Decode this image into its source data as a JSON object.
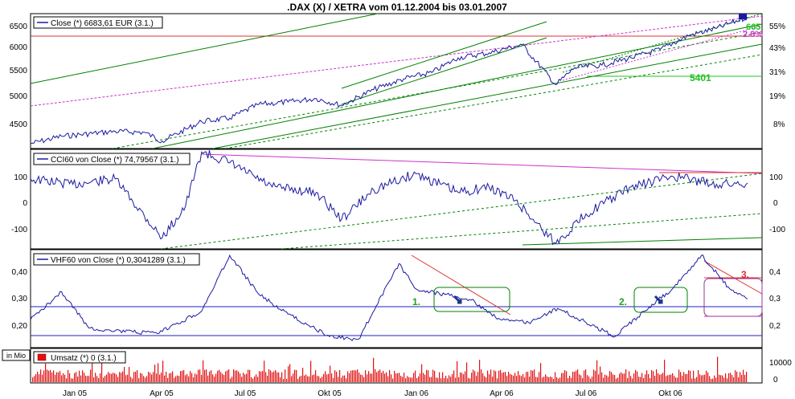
{
  "title": ".DAX (X) / XETRA vom 01.12.2004 bis 03.01.2007",
  "x_ticks": [
    "Jan 05",
    "Apr 05",
    "Jul 05",
    "Okt 05",
    "Jan 06",
    "Apr 06",
    "Jul 06",
    "Okt 06"
  ],
  "price_panel": {
    "legend": "Close (*) 6683,61 EUR (3.1.)",
    "left_ticks": [
      "6500",
      "6000",
      "5500",
      "5000",
      "4500"
    ],
    "right_ticks": [
      "55%",
      "43%",
      "31%",
      "19%",
      "8%"
    ],
    "annotation_5401": "5401",
    "annotation_665": "665",
    "annotation_28": "2.8%",
    "colors": {
      "close": "#1a1aa0",
      "channel": "#008000",
      "fib": "#cc33cc",
      "level": "#e03030",
      "support": "#22c022"
    }
  },
  "cci_panel": {
    "legend": "CCI60 von Close (*) 74,79567 (3.1.)",
    "left_ticks": [
      "100",
      "0",
      "-100"
    ],
    "right_ticks": [
      "100",
      "0",
      "-100"
    ]
  },
  "vhf_panel": {
    "legend": "VHF60 von Close (*) 0,3041289 (3.1.)",
    "left_ticks": [
      "0,40",
      "0,30",
      "0,20"
    ],
    "right_ticks": [
      "0,4",
      "0,3",
      "0,2"
    ],
    "labels": {
      "one": "1.",
      "two": "2.",
      "three": "3."
    }
  },
  "volume_panel": {
    "legend": "Umsatz (*) 0 (3.1.)",
    "unit_label": "in Mio",
    "right_ticks": [
      "10000",
      "0"
    ]
  },
  "chart_data": [
    {
      "type": "line",
      "name": "Close",
      "x": [
        "2004-12-01",
        "2005-01-03",
        "2005-03-01",
        "2005-04-01",
        "2005-04-20",
        "2005-06-01",
        "2005-07-01",
        "2005-08-01",
        "2005-09-01",
        "2005-10-01",
        "2005-10-28",
        "2005-12-01",
        "2006-01-02",
        "2006-02-01",
        "2006-03-01",
        "2006-04-03",
        "2006-05-08",
        "2006-06-13",
        "2006-07-03",
        "2006-08-01",
        "2006-09-01",
        "2006-10-02",
        "2006-11-01",
        "2006-12-01",
        "2007-01-03"
      ],
      "y": [
        4100,
        4250,
        4350,
        4330,
        4150,
        4550,
        4620,
        4900,
        4950,
        5020,
        4880,
        5200,
        5420,
        5550,
        5850,
        5950,
        6120,
        5300,
        5650,
        5700,
        5850,
        6020,
        6300,
        6450,
        6683.61
      ],
      "ylim": [
        4000,
        6750
      ]
    },
    {
      "type": "line",
      "name": "CCI60",
      "x": [
        "2004-12-01",
        "2005-01-15",
        "2005-03-01",
        "2005-04-20",
        "2005-05-15",
        "2005-06-01",
        "2005-07-01",
        "2005-08-15",
        "2005-10-01",
        "2005-10-28",
        "2005-12-01",
        "2006-01-15",
        "2006-03-01",
        "2006-04-03",
        "2006-05-01",
        "2006-06-13",
        "2006-07-15",
        "2006-09-01",
        "2006-10-15",
        "2006-12-01",
        "2007-01-03"
      ],
      "y": [
        90,
        70,
        90,
        -130,
        -10,
        190,
        150,
        60,
        40,
        -60,
        50,
        110,
        40,
        60,
        10,
        -150,
        -40,
        60,
        100,
        70,
        74.79567
      ],
      "ylim": [
        -170,
        200
      ]
    },
    {
      "type": "line",
      "name": "VHF60",
      "x": [
        "2004-12-01",
        "2005-01-03",
        "2005-02-01",
        "2005-03-01",
        "2005-04-15",
        "2005-06-01",
        "2005-07-01",
        "2005-08-01",
        "2005-09-01",
        "2005-10-15",
        "2005-11-15",
        "2005-12-28",
        "2006-01-15",
        "2006-02-15",
        "2006-03-15",
        "2006-04-15",
        "2006-05-15",
        "2006-06-15",
        "2006-07-15",
        "2006-08-15",
        "2006-09-15",
        "2006-10-15",
        "2006-11-15",
        "2006-12-15",
        "2007-01-03"
      ],
      "y": [
        0.23,
        0.33,
        0.2,
        0.19,
        0.18,
        0.26,
        0.46,
        0.32,
        0.25,
        0.17,
        0.16,
        0.43,
        0.34,
        0.32,
        0.3,
        0.23,
        0.22,
        0.27,
        0.22,
        0.17,
        0.26,
        0.34,
        0.46,
        0.34,
        0.3041289
      ],
      "ylim": [
        0.13,
        0.48
      ]
    },
    {
      "type": "bar",
      "name": "Umsatz",
      "ylim": [
        0,
        12000
      ]
    }
  ]
}
